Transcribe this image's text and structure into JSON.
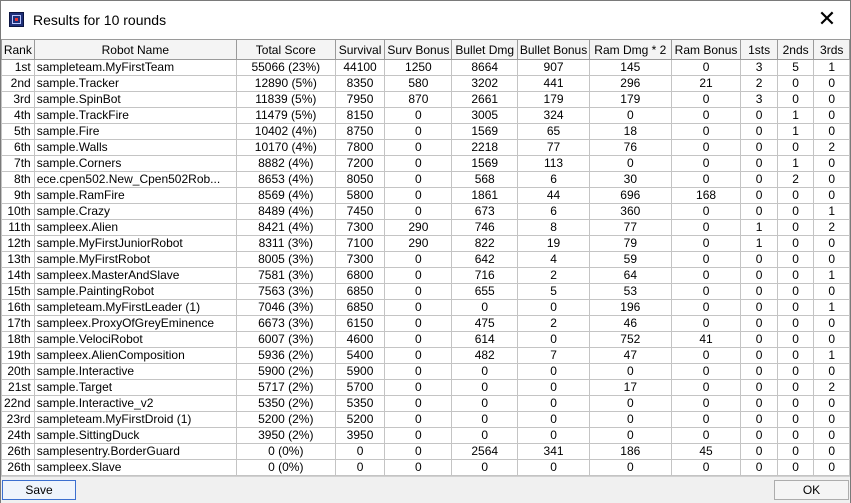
{
  "window": {
    "title": "Results for 10 rounds",
    "close_symbol": "✕"
  },
  "table": {
    "columns": [
      "Rank",
      "Robot Name",
      "Total Score",
      "Survival",
      "Surv Bonus",
      "Bullet Dmg",
      "Bullet Bonus",
      "Ram Dmg * 2",
      "Ram Bonus",
      "1sts",
      "2nds",
      "3rds"
    ],
    "rows": [
      [
        "1st",
        "sampleteam.MyFirstTeam",
        "55066 (23%)",
        "44100",
        "1250",
        "8664",
        "907",
        "145",
        "0",
        "3",
        "5",
        "1"
      ],
      [
        "2nd",
        "sample.Tracker",
        "12890 (5%)",
        "8350",
        "580",
        "3202",
        "441",
        "296",
        "21",
        "2",
        "0",
        "0"
      ],
      [
        "3rd",
        "sample.SpinBot",
        "11839 (5%)",
        "7950",
        "870",
        "2661",
        "179",
        "179",
        "0",
        "3",
        "0",
        "0"
      ],
      [
        "4th",
        "sample.TrackFire",
        "11479 (5%)",
        "8150",
        "0",
        "3005",
        "324",
        "0",
        "0",
        "0",
        "1",
        "0"
      ],
      [
        "5th",
        "sample.Fire",
        "10402 (4%)",
        "8750",
        "0",
        "1569",
        "65",
        "18",
        "0",
        "0",
        "1",
        "0"
      ],
      [
        "6th",
        "sample.Walls",
        "10170 (4%)",
        "7800",
        "0",
        "2218",
        "77",
        "76",
        "0",
        "0",
        "0",
        "2"
      ],
      [
        "7th",
        "sample.Corners",
        "8882 (4%)",
        "7200",
        "0",
        "1569",
        "113",
        "0",
        "0",
        "0",
        "1",
        "0"
      ],
      [
        "8th",
        "ece.cpen502.New_Cpen502Rob...",
        "8653 (4%)",
        "8050",
        "0",
        "568",
        "6",
        "30",
        "0",
        "0",
        "2",
        "0"
      ],
      [
        "9th",
        "sample.RamFire",
        "8569 (4%)",
        "5800",
        "0",
        "1861",
        "44",
        "696",
        "168",
        "0",
        "0",
        "0"
      ],
      [
        "10th",
        "sample.Crazy",
        "8489 (4%)",
        "7450",
        "0",
        "673",
        "6",
        "360",
        "0",
        "0",
        "0",
        "1"
      ],
      [
        "11th",
        "sampleex.Alien",
        "8421 (4%)",
        "7300",
        "290",
        "746",
        "8",
        "77",
        "0",
        "1",
        "0",
        "2"
      ],
      [
        "12th",
        "sample.MyFirstJuniorRobot",
        "8311 (3%)",
        "7100",
        "290",
        "822",
        "19",
        "79",
        "0",
        "1",
        "0",
        "0"
      ],
      [
        "13th",
        "sample.MyFirstRobot",
        "8005 (3%)",
        "7300",
        "0",
        "642",
        "4",
        "59",
        "0",
        "0",
        "0",
        "0"
      ],
      [
        "14th",
        "sampleex.MasterAndSlave",
        "7581 (3%)",
        "6800",
        "0",
        "716",
        "2",
        "64",
        "0",
        "0",
        "0",
        "1"
      ],
      [
        "15th",
        "sample.PaintingRobot",
        "7563 (3%)",
        "6850",
        "0",
        "655",
        "5",
        "53",
        "0",
        "0",
        "0",
        "0"
      ],
      [
        "16th",
        "sampleteam.MyFirstLeader (1)",
        "7046 (3%)",
        "6850",
        "0",
        "0",
        "0",
        "196",
        "0",
        "0",
        "0",
        "1"
      ],
      [
        "17th",
        "sampleex.ProxyOfGreyEminence",
        "6673 (3%)",
        "6150",
        "0",
        "475",
        "2",
        "46",
        "0",
        "0",
        "0",
        "0"
      ],
      [
        "18th",
        "sample.VelociRobot",
        "6007 (3%)",
        "4600",
        "0",
        "614",
        "0",
        "752",
        "41",
        "0",
        "0",
        "0"
      ],
      [
        "19th",
        "sampleex.AlienComposition",
        "5936 (2%)",
        "5400",
        "0",
        "482",
        "7",
        "47",
        "0",
        "0",
        "0",
        "1"
      ],
      [
        "20th",
        "sample.Interactive",
        "5900 (2%)",
        "5900",
        "0",
        "0",
        "0",
        "0",
        "0",
        "0",
        "0",
        "0"
      ],
      [
        "21st",
        "sample.Target",
        "5717 (2%)",
        "5700",
        "0",
        "0",
        "0",
        "17",
        "0",
        "0",
        "0",
        "2"
      ],
      [
        "22nd",
        "sample.Interactive_v2",
        "5350 (2%)",
        "5350",
        "0",
        "0",
        "0",
        "0",
        "0",
        "0",
        "0",
        "0"
      ],
      [
        "23rd",
        "sampleteam.MyFirstDroid (1)",
        "5200 (2%)",
        "5200",
        "0",
        "0",
        "0",
        "0",
        "0",
        "0",
        "0",
        "0"
      ],
      [
        "24th",
        "sample.SittingDuck",
        "3950 (2%)",
        "3950",
        "0",
        "0",
        "0",
        "0",
        "0",
        "0",
        "0",
        "0"
      ],
      [
        "26th",
        "samplesentry.BorderGuard",
        "0 (0%)",
        "0",
        "0",
        "2564",
        "341",
        "186",
        "45",
        "0",
        "0",
        "0"
      ],
      [
        "26th",
        "sampleex.Slave",
        "0 (0%)",
        "0",
        "0",
        "0",
        "0",
        "0",
        "0",
        "0",
        "0",
        "0"
      ]
    ]
  },
  "buttons": {
    "save": "Save",
    "ok": "OK"
  }
}
